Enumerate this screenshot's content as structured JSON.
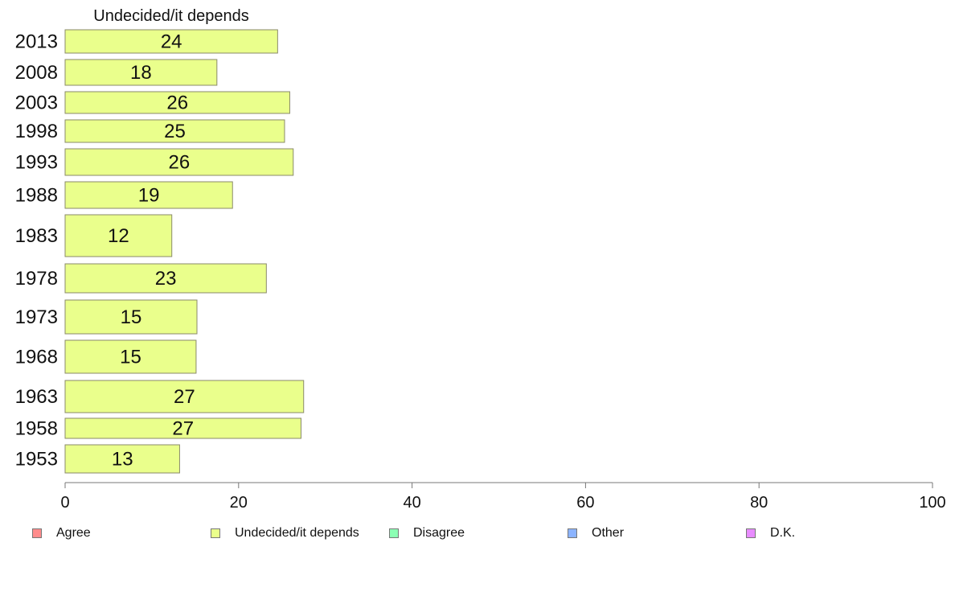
{
  "chart_data": {
    "type": "bar",
    "orientation": "horizontal",
    "title": "Undecided/it depends",
    "categories": [
      "2013",
      "2008",
      "2003",
      "1998",
      "1993",
      "1988",
      "1983",
      "1978",
      "1973",
      "1968",
      "1963",
      "1958",
      "1953"
    ],
    "series": [
      {
        "name": "Undecided/it depends",
        "color": "#eaff8c",
        "values": [
          24,
          18,
          26,
          25,
          26,
          19,
          12,
          23,
          15,
          15,
          27,
          27,
          13
        ],
        "precise_values": [
          24.5,
          17.5,
          25.9,
          25.3,
          26.3,
          19.3,
          12.3,
          23.2,
          15.2,
          15.1,
          27.5,
          27.2,
          13.2
        ]
      }
    ],
    "xlim": [
      0,
      100
    ],
    "xticks": [
      0,
      20,
      40,
      60,
      80,
      100
    ],
    "grid": false,
    "legend_position": "bottom",
    "legend": [
      {
        "label": "Agree",
        "color": "#ff8c8c"
      },
      {
        "label": "Undecided/it depends",
        "color": "#eaff8c"
      },
      {
        "label": "Disagree",
        "color": "#8cffb4"
      },
      {
        "label": "Other",
        "color": "#8cb4ff"
      },
      {
        "label": "D.K.",
        "color": "#e88cff"
      }
    ]
  }
}
